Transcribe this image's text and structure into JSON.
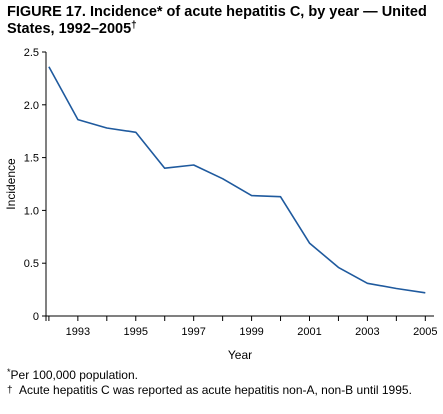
{
  "title": {
    "text": "FIGURE 17. Incidence* of acute hepatitis C, by year — United States, 1992–2005",
    "mark": "†"
  },
  "footnotes": [
    {
      "mark": "*",
      "text": "Per 100,000 population."
    },
    {
      "mark": "†",
      "text": "Acute hepatitis C was reported as acute hepatitis non-A, non-B until 1995."
    }
  ],
  "colors": {
    "line": "#1f5a9e",
    "axis": "#000000"
  },
  "chart_data": {
    "type": "line",
    "title": "FIGURE 17. Incidence* of acute hepatitis C, by year — United States, 1992–2005",
    "xlabel": "Year",
    "ylabel": "Incidence",
    "xlim": [
      1991.9,
      2005.3
    ],
    "ylim": [
      0,
      2.5
    ],
    "x_ticks": [
      1993,
      1995,
      1997,
      1999,
      2001,
      2003,
      2005
    ],
    "x_tick_labels": [
      "1993",
      "1995",
      "1997",
      "1999",
      "2001",
      "2003",
      "2005"
    ],
    "y_ticks": [
      0,
      0.5,
      1.0,
      1.5,
      2.0,
      2.5
    ],
    "y_tick_labels": [
      "0",
      "0.5",
      "1.0",
      "1.5",
      "2.0",
      "2.5"
    ],
    "grid": false,
    "legend": "none",
    "series": [
      {
        "x": [
          1992,
          1993,
          1994,
          1995,
          1996,
          1997,
          1998,
          1999,
          2000,
          2001,
          2002,
          2003,
          2004,
          2005
        ],
        "values": [
          2.36,
          1.86,
          1.78,
          1.74,
          1.4,
          1.43,
          1.3,
          1.14,
          1.13,
          0.69,
          0.46,
          0.31,
          0.26,
          0.22
        ]
      }
    ]
  }
}
